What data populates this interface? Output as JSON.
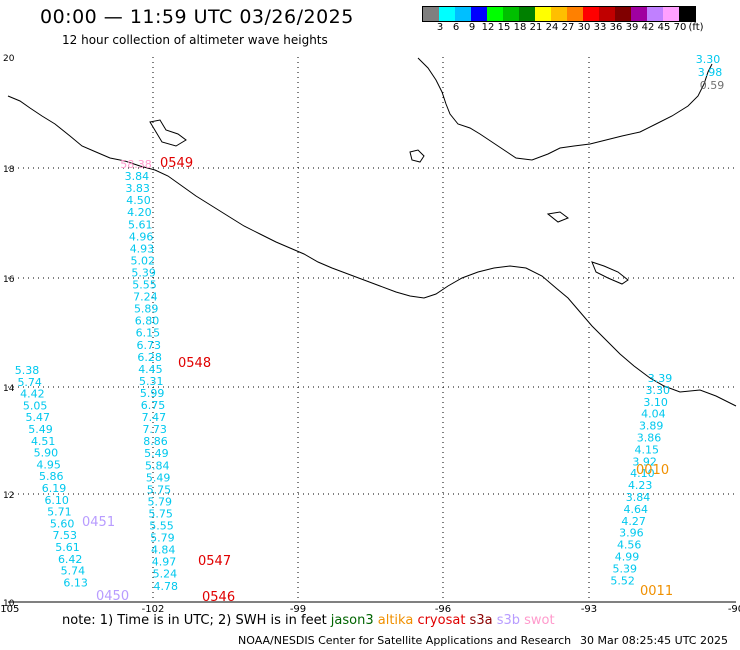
{
  "title": "00:00 — 11:59 UTC 03/26/2025",
  "subtitle": "12 hour collection of altimeter wave heights",
  "colorbar": {
    "colors": [
      "#7f7f7f",
      "#00ffff",
      "#00bfff",
      "#0000ff",
      "#00ff00",
      "#00c000",
      "#008000",
      "#ffff00",
      "#ffbf00",
      "#ff8000",
      "#ff0000",
      "#c00000",
      "#800000",
      "#a000a0",
      "#c080ff",
      "#ffa0ff",
      "#000000"
    ],
    "labels": [
      "3",
      "6",
      "9",
      "12",
      "15",
      "18",
      "21",
      "24",
      "27",
      "30",
      "33",
      "36",
      "39",
      "42",
      "45",
      "70",
      "(ft)"
    ]
  },
  "axes": {
    "x_ticks": [
      "-105",
      "-102",
      "-99",
      "-96",
      "-93",
      "-90"
    ],
    "y_ticks": [
      "20",
      "18",
      "16",
      "14",
      "12",
      "10"
    ]
  },
  "swh_colors": {
    "cyan": "#00c8ee",
    "pink": "#ff9acc",
    "gray": "#707070",
    "red": "#e00000",
    "orange": "#f09000",
    "lilac": "#b89cff"
  },
  "pass_labels": [
    "0549",
    "0548",
    "0547",
    "0546",
    "0451",
    "0450",
    "0010",
    "0011"
  ],
  "track_102": [
    "58.38",
    "3.84",
    "3.83",
    "4.50",
    "4.20",
    "5.61",
    "4.96",
    "4.93",
    "5.02",
    "5.39",
    "5.55",
    "7.24",
    "5.89",
    "6.80",
    "6.15",
    "6.73",
    "6.28",
    "4.45",
    "5.31",
    "5.99",
    "6.75",
    "7.47",
    "7.73",
    "8.86",
    "5.49",
    "5.84",
    "5.49",
    "5.75",
    "5.79",
    "5.75",
    "5.55",
    "5.79",
    "4.84",
    "4.97",
    "5.24",
    "4.78"
  ],
  "track_104": [
    "5.38",
    "5.74",
    "4.42",
    "5.05",
    "5.47",
    "5.49",
    "4.51",
    "5.90",
    "4.95",
    "5.86",
    "6.19",
    "6.10",
    "5.71",
    "5.60",
    "7.53",
    "5.61",
    "6.42",
    "5.74",
    "6.13"
  ],
  "track_93": [
    "3.39",
    "3.30",
    "3.10",
    "4.04",
    "3.89",
    "3.86",
    "4.15",
    "3.92",
    "4.10",
    "4.23",
    "3.84",
    "4.64",
    "4.27",
    "3.96",
    "4.56",
    "4.99",
    "5.39",
    "5.52"
  ],
  "track_corner": [
    "3.30",
    "3.98",
    "0.59"
  ],
  "note": {
    "prefix": "note:  1) Time is in UTC;  2) SWH is in feet",
    "sats": [
      {
        "name": "jason3",
        "color": "#006400"
      },
      {
        "name": "altika",
        "color": "#f09000"
      },
      {
        "name": "cryosat",
        "color": "#e00000"
      },
      {
        "name": "s3a",
        "color": "#8b0000"
      },
      {
        "name": "s3b",
        "color": "#b89cff"
      },
      {
        "name": "swot",
        "color": "#ff9acc"
      }
    ]
  },
  "footer_left": "NOAA/NESDIS Center for Satellite Applications and Research",
  "footer_right": "30 Mar 08:25:45 UTC 2025"
}
